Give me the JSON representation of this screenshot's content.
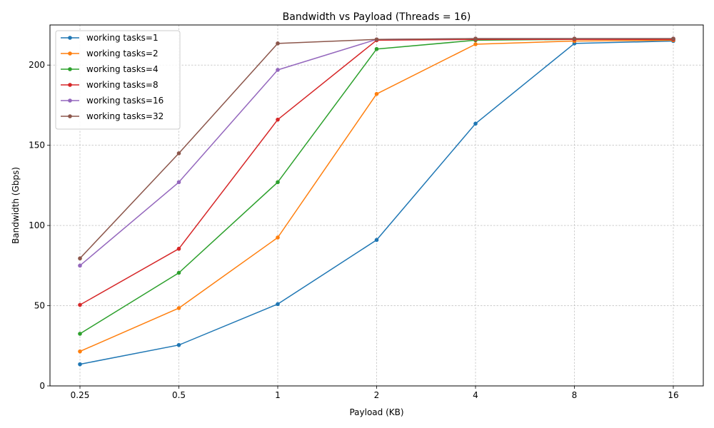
{
  "chart_data": {
    "type": "line",
    "title": "Bandwidth vs Payload (Threads = 16)",
    "xlabel": "Payload (KB)",
    "ylabel": "Bandwidth (Gbps)",
    "categories": [
      "0.25",
      "0.5",
      "1",
      "2",
      "4",
      "8",
      "16"
    ],
    "ylim": [
      0,
      225
    ],
    "yticks": [
      "0",
      "50",
      "100",
      "150",
      "200"
    ],
    "grid": true,
    "legend_position": "top-left",
    "series": [
      {
        "name": "working tasks=1",
        "color": "#1f77b4",
        "values": [
          13.5,
          25.5,
          51,
          91,
          163.5,
          213.5,
          215
        ]
      },
      {
        "name": "working tasks=2",
        "color": "#ff7f0e",
        "values": [
          21.5,
          48.5,
          92.5,
          182,
          213,
          215,
          215.5
        ]
      },
      {
        "name": "working tasks=4",
        "color": "#2ca02c",
        "values": [
          32.5,
          70.5,
          127,
          210,
          215.5,
          216,
          216
        ]
      },
      {
        "name": "working tasks=8",
        "color": "#d62728",
        "values": [
          50.5,
          85.5,
          166,
          215.5,
          216,
          216,
          216
        ]
      },
      {
        "name": "working tasks=16",
        "color": "#9467bd",
        "values": [
          75,
          127,
          197,
          216,
          216.5,
          216.5,
          216.5
        ]
      },
      {
        "name": "working tasks=32",
        "color": "#8c564b",
        "values": [
          79.5,
          145,
          213.5,
          216,
          216.5,
          216.5,
          216.5
        ]
      }
    ]
  }
}
